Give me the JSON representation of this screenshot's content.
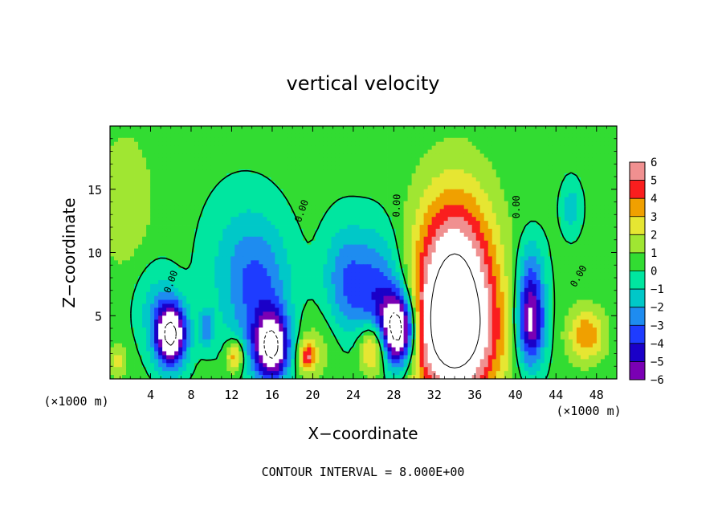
{
  "chart_data": {
    "type": "heatmap",
    "title": "vertical velocity",
    "xlabel": "X−coordinate",
    "ylabel": "Z−coordinate",
    "x_unit": "(×1000 m)",
    "y_unit": "(×1000 m)",
    "xlim": [
      0,
      50
    ],
    "ylim": [
      0,
      20
    ],
    "x_ticks": [
      "4",
      "8",
      "12",
      "16",
      "20",
      "24",
      "28",
      "32",
      "36",
      "40",
      "44",
      "48"
    ],
    "y_ticks": [
      "5",
      "10",
      "15"
    ],
    "x_tick_values": [
      4,
      8,
      12,
      16,
      20,
      24,
      28,
      32,
      36,
      40,
      44,
      48
    ],
    "y_tick_values": [
      5,
      10,
      15
    ],
    "colorbar": {
      "min": -6,
      "max": 6,
      "labels": [
        "6",
        "5",
        "4",
        "3",
        "2",
        "1",
        "0",
        "−1",
        "−2",
        "−3",
        "−4",
        "−5",
        "−6"
      ],
      "label_values": [
        6,
        5,
        4,
        3,
        2,
        1,
        0,
        -1,
        -2,
        -3,
        -4,
        -5,
        -6
      ]
    },
    "contour_labels": [
      "0.00",
      "0.00",
      "0.00",
      "0.00",
      "0.00"
    ],
    "features": [
      {
        "x": 34,
        "z": 6.5,
        "value": 9,
        "sx": 2.8,
        "sz": 5.5
      },
      {
        "x": 34,
        "z": 3.0,
        "value": 3,
        "sx": 3.5,
        "sz": 3.0
      },
      {
        "x": 26,
        "z": 2.5,
        "value": 5,
        "sx": 1.1,
        "sz": 1.5
      },
      {
        "x": 28.4,
        "z": 3.8,
        "value": -10,
        "sx": 1.2,
        "sz": 2.0
      },
      {
        "x": 26.3,
        "z": 6.5,
        "value": -4,
        "sx": 2.0,
        "sz": 3.5
      },
      {
        "x": 23,
        "z": 8.0,
        "value": -2.5,
        "sx": 1.5,
        "sz": 3.0
      },
      {
        "x": 6,
        "z": 3.5,
        "value": -9,
        "sx": 1.1,
        "sz": 1.8
      },
      {
        "x": 4.3,
        "z": 6.0,
        "value": -1.5,
        "sx": 1.5,
        "sz": 2.5
      },
      {
        "x": 16,
        "z": 2.5,
        "value": -8,
        "sx": 1.2,
        "sz": 1.8
      },
      {
        "x": 15,
        "z": 6.5,
        "value": -3,
        "sx": 2.2,
        "sz": 4.0
      },
      {
        "x": 12.5,
        "z": 9.0,
        "value": -1.5,
        "sx": 2.5,
        "sz": 4.0
      },
      {
        "x": 12.3,
        "z": 1.8,
        "value": 4,
        "sx": 0.6,
        "sz": 0.9
      },
      {
        "x": 19.5,
        "z": 1.8,
        "value": 4,
        "sx": 0.6,
        "sz": 0.8
      },
      {
        "x": 9.5,
        "z": 4.0,
        "value": -3,
        "sx": 0.5,
        "sz": 1.0
      },
      {
        "x": 41.5,
        "z": 4.5,
        "value": -7,
        "sx": 1.0,
        "sz": 2.5
      },
      {
        "x": 41.5,
        "z": 9.0,
        "value": -2,
        "sx": 1.0,
        "sz": 2.0
      },
      {
        "x": 47,
        "z": 3.5,
        "value": 3.5,
        "sx": 1.3,
        "sz": 1.5
      },
      {
        "x": 45.5,
        "z": 13.5,
        "value": -2,
        "sx": 0.7,
        "sz": 1.5
      },
      {
        "x": 1.5,
        "z": 14.0,
        "value": 1.5,
        "sx": 2.0,
        "sz": 4.0
      },
      {
        "x": 0.8,
        "z": 1.5,
        "value": 2.0,
        "sx": 0.6,
        "sz": 1.0
      },
      {
        "x": 20,
        "z": 2.5,
        "value": 1.2,
        "sx": 2.0,
        "sz": 2.0
      }
    ]
  },
  "footer": {
    "contour_interval_text": "CONTOUR INTERVAL = 8.000E+00"
  }
}
